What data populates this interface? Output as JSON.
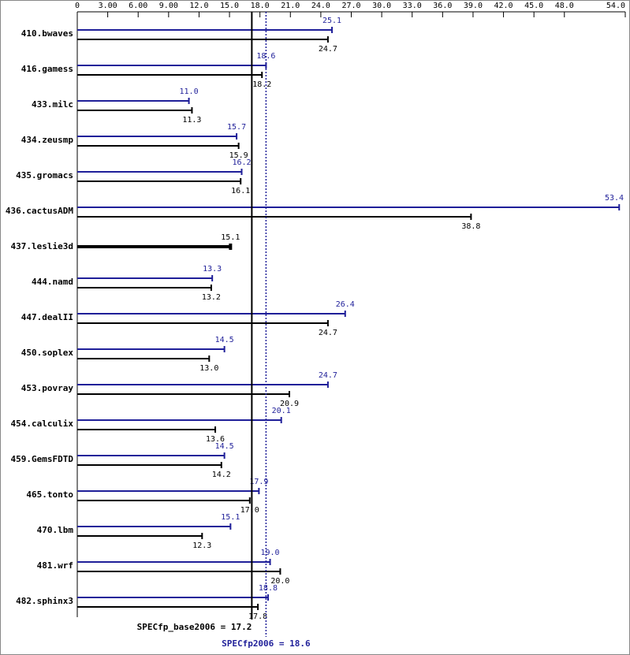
{
  "chart_data": {
    "type": "bar",
    "orientation": "horizontal",
    "categories": [
      "410.bwaves",
      "416.gamess",
      "433.milc",
      "434.zeusmp",
      "435.gromacs",
      "436.cactusADM",
      "437.leslie3d",
      "444.namd",
      "447.dealII",
      "450.soplex",
      "453.povray",
      "454.calculix",
      "459.GemsFDTD",
      "465.tonto",
      "470.lbm",
      "481.wrf",
      "482.sphinx3"
    ],
    "series": [
      {
        "color": "#1f1f99",
        "values": [
          25.1,
          18.6,
          11.0,
          15.7,
          16.2,
          53.4,
          null,
          13.3,
          26.4,
          14.5,
          24.7,
          20.1,
          14.5,
          17.9,
          15.1,
          19.0,
          18.8
        ],
        "value_labels": [
          "25.1",
          "18.6",
          "11.0",
          "15.7",
          "16.2",
          "53.4",
          null,
          "13.3",
          "26.4",
          "14.5",
          "24.7",
          "20.1",
          "14.5",
          "17.9",
          "15.1",
          "19.0",
          "18.8"
        ]
      },
      {
        "color": "#000000",
        "values": [
          24.7,
          18.2,
          11.3,
          15.9,
          16.1,
          38.8,
          15.1,
          13.2,
          24.7,
          13.0,
          20.9,
          13.6,
          14.2,
          17.0,
          12.3,
          20.0,
          17.8
        ],
        "value_labels": [
          "24.7",
          "18.2",
          "11.3",
          "15.9",
          "16.1",
          "38.8",
          "15.1",
          "13.2",
          "24.7",
          "13.0",
          "20.9",
          "13.6",
          "14.2",
          "17.0",
          "12.3",
          "20.0",
          "17.8"
        ]
      }
    ],
    "xlim": [
      0,
      54
    ],
    "xticks": [
      0,
      {
        "value": 3,
        "label": "3.00"
      },
      {
        "value": 6,
        "label": "6.00"
      },
      {
        "value": 9,
        "label": "9.00"
      },
      {
        "value": 12,
        "label": "12.0"
      },
      {
        "value": 15,
        "label": "15.0"
      },
      {
        "value": 18,
        "label": "18.0"
      },
      {
        "value": 21,
        "label": "21.0"
      },
      {
        "value": 24,
        "label": "24.0"
      },
      {
        "value": 27,
        "label": "27.0"
      },
      {
        "value": 30,
        "label": "30.0"
      },
      {
        "value": 33,
        "label": "33.0"
      },
      {
        "value": 36,
        "label": "36.0"
      },
      {
        "value": 39,
        "label": "39.0"
      },
      {
        "value": 42,
        "label": "42.0"
      },
      {
        "value": 45,
        "label": "45.0"
      },
      {
        "value": 48,
        "label": "48.0"
      },
      {
        "value": 54,
        "label": "54.0"
      }
    ],
    "reference_lines": [
      {
        "label": "SPECfp_base2006 = 17.2",
        "value": 17.2,
        "color": "#000000",
        "style": "solid"
      },
      {
        "label": "SPECfp2006 = 18.6",
        "value": 18.6,
        "color": "#1f1f99",
        "style": "dotted"
      }
    ]
  }
}
